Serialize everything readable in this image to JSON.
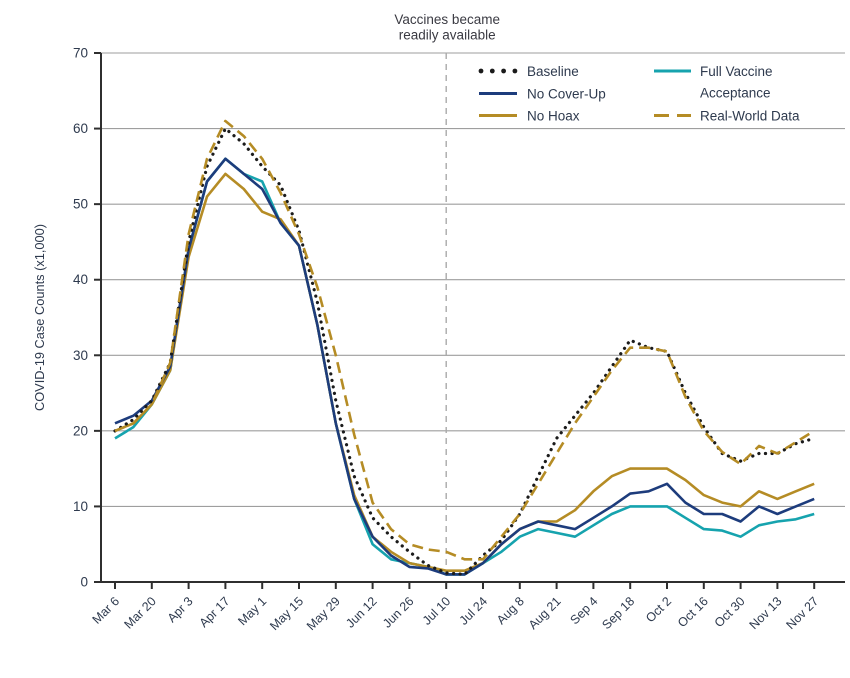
{
  "chart_data": {
    "type": "line",
    "annotation": {
      "lines": [
        "Vaccines became",
        "readily available"
      ]
    },
    "ylabel": "COVID-19 Case Counts (x1,000)",
    "x_tick_labels": [
      "Mar 6",
      "Mar 20",
      "Apr 3",
      "Apr 17",
      "May 1",
      "May 15",
      "May 29",
      "Jun 12",
      "Jun 26",
      "Jul 10",
      "Jul 24",
      "Aug 8",
      "Aug 21",
      "Sep 4",
      "Sep 18",
      "Oct 2",
      "Oct 16",
      "Oct 30",
      "Nov 13",
      "Nov 27"
    ],
    "samples_per_tick_interval": 2,
    "ylim": [
      0,
      70
    ],
    "y_ticks": [
      0,
      10,
      20,
      30,
      40,
      50,
      60,
      70
    ],
    "grid": "horizontal",
    "vline_at_label": "Jul 10",
    "legend_position": "top-center, two columns, no frame",
    "series": [
      {
        "name": "Baseline",
        "legend_label_lines": [
          "Baseline"
        ],
        "color": "#1b1b1b",
        "style": "dotted",
        "values": [
          20,
          21.5,
          24,
          29,
          45,
          55,
          60,
          58,
          55,
          52.5,
          46.5,
          37,
          24,
          14,
          8.5,
          6,
          4,
          2.2,
          1.2,
          1,
          3.5,
          5.5,
          9,
          14,
          19,
          22,
          25,
          28.5,
          32,
          31,
          30.5,
          25,
          20.5,
          17,
          16,
          17,
          17,
          18.3,
          19
        ]
      },
      {
        "name": "No Cover-Up",
        "legend_label_lines": [
          "No Cover-Up"
        ],
        "color": "#1d3c7c",
        "style": "solid",
        "values": [
          21,
          22,
          24,
          28.5,
          44,
          53,
          56,
          54,
          52,
          47.5,
          44.5,
          34,
          21,
          11,
          6,
          3.5,
          2,
          1.8,
          1,
          1,
          2.5,
          5,
          7,
          8,
          7.5,
          7,
          8.5,
          10,
          11.7,
          12,
          13,
          10.5,
          9,
          9,
          8,
          10,
          9,
          10,
          11
        ]
      },
      {
        "name": "No Hoax",
        "legend_label_lines": [
          "No Hoax"
        ],
        "color": "#b58c25",
        "style": "solid",
        "values": [
          20,
          21,
          23.5,
          28,
          43,
          51,
          54,
          52,
          49,
          48,
          44.5,
          34,
          21,
          11.5,
          6,
          4,
          2.5,
          2,
          1.5,
          1.5,
          2.5,
          5,
          7,
          8,
          8,
          9.5,
          12,
          14,
          15,
          15,
          15,
          13.5,
          11.5,
          10.5,
          10,
          12,
          11,
          12,
          13
        ]
      },
      {
        "name": "Full Vaccine Acceptance",
        "legend_label_lines": [
          "Full Vaccine",
          "Acceptance"
        ],
        "color": "#16a3ae",
        "style": "solid",
        "values": [
          19,
          20.5,
          23.5,
          28,
          44,
          53,
          56,
          54,
          53,
          47.5,
          44.5,
          34,
          21,
          11,
          5,
          3,
          2.5,
          2,
          1,
          1,
          2.5,
          4,
          6,
          7,
          6.5,
          6,
          7.5,
          9,
          10,
          10,
          10,
          8.5,
          7,
          6.8,
          6,
          7.5,
          8,
          8.3,
          9
        ]
      },
      {
        "name": "Real-World Data",
        "legend_label_lines": [
          "Real-World Data"
        ],
        "color": "#b58c25",
        "style": "dashed",
        "values": [
          20,
          21,
          23.5,
          29,
          46,
          56,
          61,
          59,
          56,
          51.5,
          46,
          39,
          30,
          19.5,
          10.5,
          7,
          5,
          4.3,
          4,
          3,
          3,
          6,
          9,
          13,
          17,
          21,
          24.5,
          28,
          31,
          31,
          30.5,
          24.5,
          20,
          17.2,
          15.6,
          18,
          17,
          18.5,
          20
        ]
      }
    ],
    "colors": {
      "grid": "#9e9e9e",
      "axis": "#2f2f2f",
      "tick_text": "#2e3a4e",
      "ylabel_text": "#2e3a4e",
      "annotation_text": "#3a3a42",
      "vline": "#a9a9a9",
      "background": "#ffffff"
    }
  }
}
